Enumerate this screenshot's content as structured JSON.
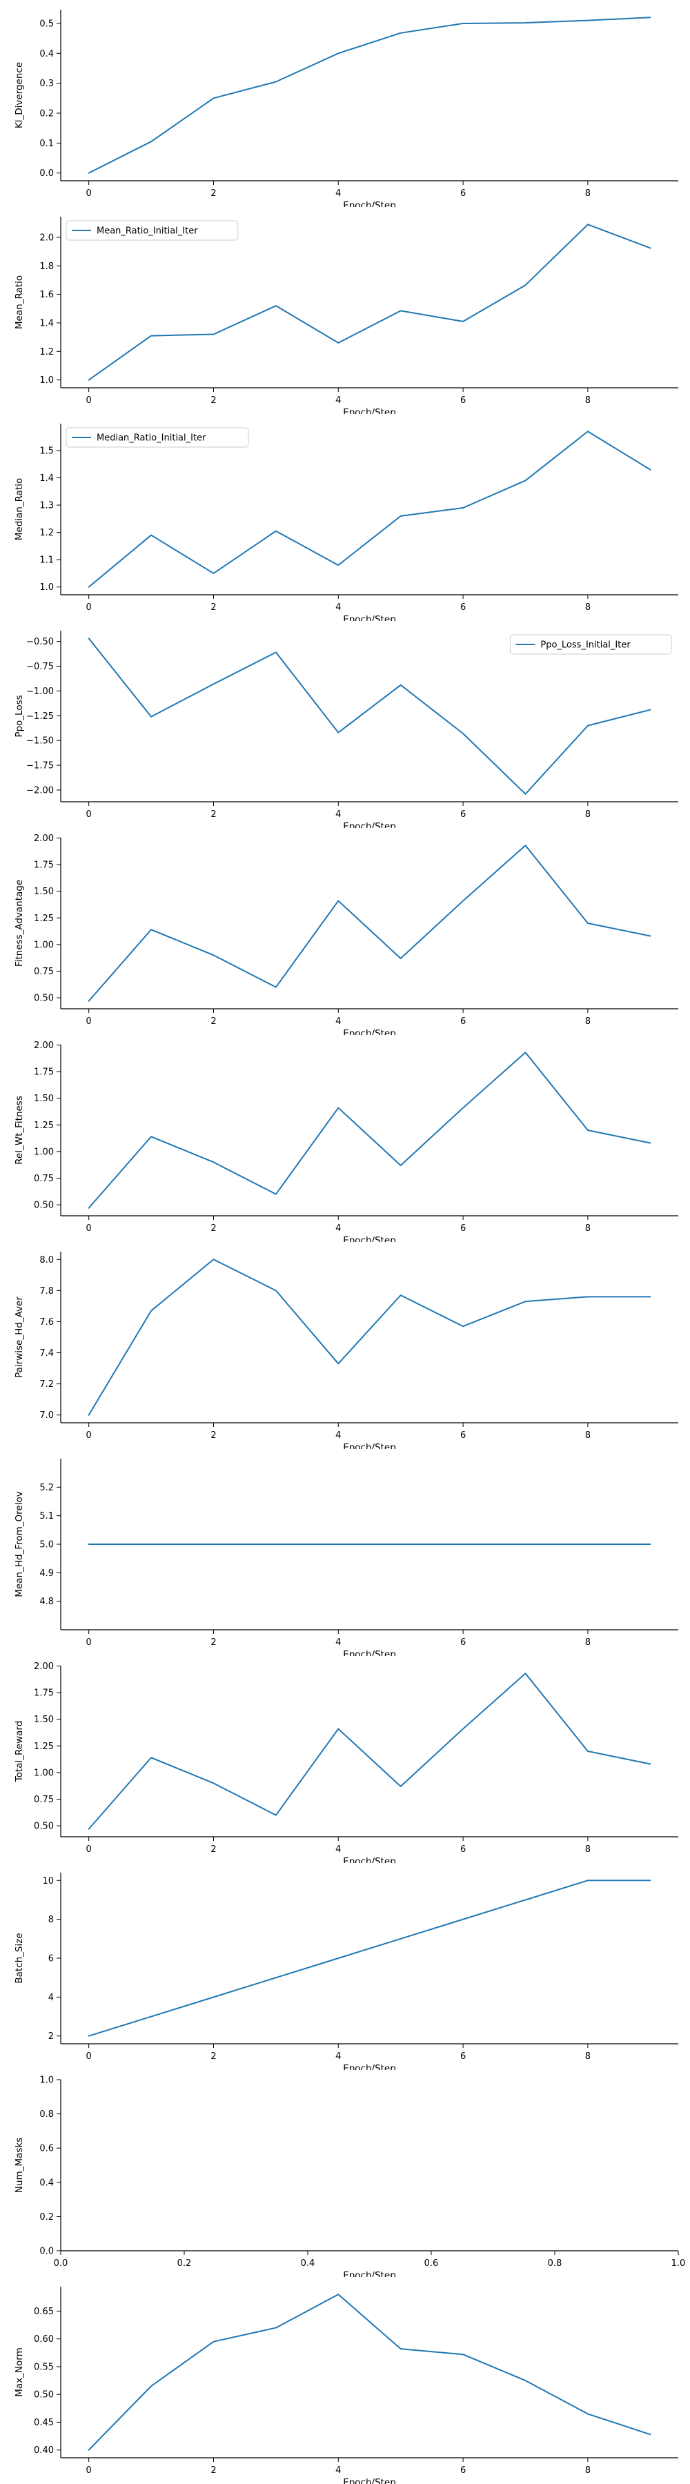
{
  "colors": {
    "series": "#1f77b4",
    "axis": "#000000",
    "legend_border": "#cccccc"
  },
  "chart_data": [
    {
      "type": "line",
      "xlabel": "Epoch/Step",
      "ylabel": "Kl_Divergence",
      "x": [
        0,
        1,
        2,
        3,
        4,
        5,
        6,
        7,
        8,
        9
      ],
      "series": [
        {
          "values": [
            0.0,
            0.105,
            0.25,
            0.305,
            0.4,
            0.468,
            0.5,
            0.502,
            0.51,
            0.52
          ]
        }
      ],
      "xlim": [
        -0.45,
        9.45
      ],
      "ylim": [
        -0.026,
        0.546
      ],
      "xticks": [
        0,
        2,
        4,
        6,
        8
      ],
      "yticks": [
        0.0,
        0.1,
        0.2,
        0.3,
        0.4,
        0.5
      ],
      "legend": null
    },
    {
      "type": "line",
      "xlabel": "Epoch/Step",
      "ylabel": "Mean_Ratio",
      "x": [
        0,
        1,
        2,
        3,
        4,
        5,
        6,
        7,
        8,
        9
      ],
      "series": [
        {
          "name": "Mean_Ratio_Initial_Iter",
          "values": [
            1.0,
            1.31,
            1.32,
            1.52,
            1.26,
            1.485,
            1.41,
            1.665,
            2.09,
            1.925
          ]
        }
      ],
      "xlim": [
        -0.45,
        9.45
      ],
      "ylim": [
        0.945,
        2.145
      ],
      "xticks": [
        0,
        2,
        4,
        6,
        8
      ],
      "yticks": [
        1.0,
        1.2,
        1.4,
        1.6,
        1.8,
        2.0
      ],
      "legend": "upper-left"
    },
    {
      "type": "line",
      "xlabel": "Epoch/Step",
      "ylabel": "Median_Ratio",
      "x": [
        0,
        1,
        2,
        3,
        4,
        5,
        6,
        7,
        8,
        9
      ],
      "series": [
        {
          "name": "Median_Ratio_Initial_Iter",
          "values": [
            1.0,
            1.19,
            1.05,
            1.205,
            1.08,
            1.26,
            1.29,
            1.39,
            1.57,
            1.43
          ]
        }
      ],
      "xlim": [
        -0.45,
        9.45
      ],
      "ylim": [
        0.9715,
        1.5985
      ],
      "xticks": [
        0,
        2,
        4,
        6,
        8
      ],
      "yticks": [
        1.0,
        1.1,
        1.2,
        1.3,
        1.4,
        1.5
      ],
      "legend": "upper-left"
    },
    {
      "type": "line",
      "xlabel": "Epoch/Step",
      "ylabel": "Ppo_Loss",
      "x": [
        0,
        1,
        2,
        3,
        4,
        5,
        6,
        7,
        8,
        9
      ],
      "series": [
        {
          "name": "Ppo_Loss_Initial_Iter",
          "values": [
            -0.47,
            -1.26,
            -0.93,
            -0.61,
            -1.42,
            -0.94,
            -1.43,
            -2.04,
            -1.35,
            -1.19
          ]
        }
      ],
      "xlim": [
        -0.45,
        9.45
      ],
      "ylim": [
        -2.1185,
        -0.3915
      ],
      "xticks": [
        0,
        2,
        4,
        6,
        8
      ],
      "yticks": [
        -2.0,
        -1.75,
        -1.5,
        -1.25,
        -1.0,
        -0.75,
        -0.5
      ],
      "legend": "upper-right"
    },
    {
      "type": "line",
      "xlabel": "Epoch/Step",
      "ylabel": "Fitness_Advantage",
      "x": [
        0,
        1,
        2,
        3,
        4,
        5,
        6,
        7,
        8,
        9
      ],
      "series": [
        {
          "values": [
            0.47,
            1.14,
            0.9,
            0.6,
            1.41,
            0.87,
            1.41,
            1.93,
            1.2,
            1.08
          ]
        }
      ],
      "xlim": [
        -0.45,
        9.45
      ],
      "ylim": [
        0.397,
        2.003
      ],
      "xticks": [
        0,
        2,
        4,
        6,
        8
      ],
      "yticks": [
        0.5,
        0.75,
        1.0,
        1.25,
        1.5,
        1.75,
        2.0
      ],
      "legend": null
    },
    {
      "type": "line",
      "xlabel": "Epoch/Step",
      "ylabel": "Rel_Wt_Fitness",
      "x": [
        0,
        1,
        2,
        3,
        4,
        5,
        6,
        7,
        8,
        9
      ],
      "series": [
        {
          "values": [
            0.47,
            1.14,
            0.9,
            0.6,
            1.41,
            0.87,
            1.41,
            1.93,
            1.2,
            1.08
          ]
        }
      ],
      "xlim": [
        -0.45,
        9.45
      ],
      "ylim": [
        0.397,
        2.003
      ],
      "xticks": [
        0,
        2,
        4,
        6,
        8
      ],
      "yticks": [
        0.5,
        0.75,
        1.0,
        1.25,
        1.5,
        1.75,
        2.0
      ],
      "legend": null
    },
    {
      "type": "line",
      "xlabel": "Epoch/Step",
      "ylabel": "Pairwise_Hd_Aver",
      "x": [
        0,
        1,
        2,
        3,
        4,
        5,
        6,
        7,
        8,
        9
      ],
      "series": [
        {
          "values": [
            7.0,
            7.67,
            8.0,
            7.8,
            7.33,
            7.77,
            7.57,
            7.73,
            7.76,
            7.76
          ]
        }
      ],
      "xlim": [
        -0.45,
        9.45
      ],
      "ylim": [
        6.95,
        8.05
      ],
      "xticks": [
        0,
        2,
        4,
        6,
        8
      ],
      "yticks": [
        7.0,
        7.2,
        7.4,
        7.6,
        7.8,
        8.0
      ],
      "legend": null
    },
    {
      "type": "line",
      "xlabel": "Epoch/Step",
      "ylabel": "Mean_Hd_From_Orelov",
      "x": [
        0,
        1,
        2,
        3,
        4,
        5,
        6,
        7,
        8,
        9
      ],
      "series": [
        {
          "values": [
            5.0,
            5.0,
            5.0,
            5.0,
            5.0,
            5.0,
            5.0,
            5.0,
            5.0,
            5.0
          ]
        }
      ],
      "xlim": [
        -0.45,
        9.45
      ],
      "ylim": [
        4.7,
        5.3
      ],
      "xticks": [
        0,
        2,
        4,
        6,
        8
      ],
      "yticks": [
        4.8,
        4.9,
        5.0,
        5.1,
        5.2
      ],
      "legend": null
    },
    {
      "type": "line",
      "xlabel": "Epoch/Step",
      "ylabel": "Total_Reward",
      "x": [
        0,
        1,
        2,
        3,
        4,
        5,
        6,
        7,
        8,
        9
      ],
      "series": [
        {
          "values": [
            0.47,
            1.14,
            0.9,
            0.6,
            1.41,
            0.87,
            1.41,
            1.93,
            1.2,
            1.08
          ]
        }
      ],
      "xlim": [
        -0.45,
        9.45
      ],
      "ylim": [
        0.397,
        2.003
      ],
      "xticks": [
        0,
        2,
        4,
        6,
        8
      ],
      "yticks": [
        0.5,
        0.75,
        1.0,
        1.25,
        1.5,
        1.75,
        2.0
      ],
      "legend": null
    },
    {
      "type": "line",
      "xlabel": "Epoch/Step",
      "ylabel": "Batch_Size",
      "x": [
        0,
        1,
        2,
        3,
        4,
        5,
        6,
        7,
        8,
        9
      ],
      "series": [
        {
          "values": [
            2,
            3,
            4,
            5,
            6,
            7,
            8,
            9,
            10,
            10
          ]
        }
      ],
      "xlim": [
        -0.45,
        9.45
      ],
      "ylim": [
        1.6,
        10.4
      ],
      "xticks": [
        0,
        2,
        4,
        6,
        8
      ],
      "yticks": [
        2,
        4,
        6,
        8,
        10
      ],
      "legend": null
    },
    {
      "type": "line",
      "xlabel": "Epoch/Step",
      "ylabel": "Num_Masks",
      "x": [],
      "series": [],
      "xlim": [
        0.0,
        1.0
      ],
      "ylim": [
        0.0,
        1.0
      ],
      "xticks": [
        0.0,
        0.2,
        0.4,
        0.6,
        0.8,
        1.0
      ],
      "yticks": [
        0.0,
        0.2,
        0.4,
        0.6,
        0.8,
        1.0
      ],
      "legend": null
    },
    {
      "type": "line",
      "xlabel": "Epoch/Step",
      "ylabel": "Max_Norm",
      "x": [
        0,
        1,
        2,
        3,
        4,
        5,
        6,
        7,
        8,
        9
      ],
      "series": [
        {
          "values": [
            0.4,
            0.515,
            0.595,
            0.62,
            0.68,
            0.582,
            0.572,
            0.525,
            0.465,
            0.428
          ]
        }
      ],
      "xlim": [
        -0.45,
        9.45
      ],
      "ylim": [
        0.386,
        0.694
      ],
      "xticks": [
        0,
        2,
        4,
        6,
        8
      ],
      "yticks": [
        0.4,
        0.45,
        0.5,
        0.55,
        0.6,
        0.65
      ],
      "legend": null
    }
  ]
}
